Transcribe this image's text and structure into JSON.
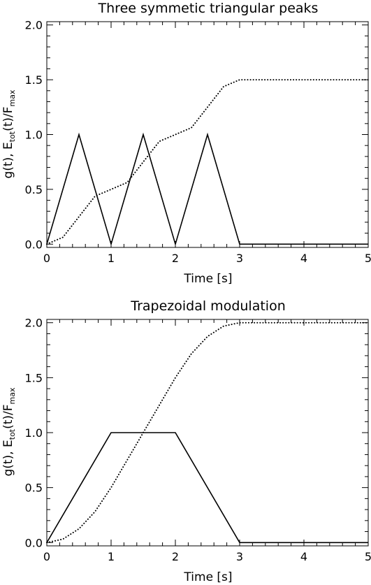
{
  "chart_data": [
    {
      "type": "line",
      "title": "Three symmetic triangular peaks",
      "xlabel": "Time [s]",
      "ylabel": {
        "main": "g(t), E",
        "sub1": "tot",
        "mid": "(t)/F",
        "sub2": "max"
      },
      "xlim": [
        0,
        5
      ],
      "ylim": [
        -0.03,
        2.03
      ],
      "xticks": [
        0,
        1,
        2,
        3,
        4,
        5
      ],
      "xtick_labels": [
        "0",
        "1",
        "2",
        "3",
        "4",
        "5"
      ],
      "yticks": [
        0.0,
        0.5,
        1.0,
        1.5,
        2.0
      ],
      "ytick_labels": [
        "0.0",
        "0.5",
        "1.0",
        "1.5",
        "2.0"
      ],
      "grid": false,
      "series": [
        {
          "style": "solid",
          "x": [
            0,
            0.5,
            1,
            1.5,
            2,
            2.5,
            3,
            5
          ],
          "y": [
            0,
            1,
            0,
            1,
            0,
            1,
            0,
            0
          ]
        },
        {
          "style": "dotted",
          "x": [
            0,
            0.25,
            0.5,
            0.75,
            1,
            1.25,
            1.5,
            1.75,
            2,
            2.25,
            2.5,
            2.75,
            3,
            3.5,
            4,
            4.5,
            5
          ],
          "y": [
            0,
            0.0625,
            0.25,
            0.4375,
            0.5,
            0.5625,
            0.75,
            0.9375,
            1.0,
            1.0625,
            1.25,
            1.4375,
            1.5,
            1.5,
            1.5,
            1.5,
            1.5
          ]
        }
      ]
    },
    {
      "type": "line",
      "title": "Trapezoidal modulation",
      "xlabel": "Time [s]",
      "ylabel": {
        "main": "g(t), E",
        "sub1": "tot",
        "mid": "(t)/F",
        "sub2": "max"
      },
      "xlim": [
        0,
        5
      ],
      "ylim": [
        -0.03,
        2.03
      ],
      "xticks": [
        0,
        1,
        2,
        3,
        4,
        5
      ],
      "xtick_labels": [
        "0",
        "1",
        "2",
        "3",
        "4",
        "5"
      ],
      "yticks": [
        0.0,
        0.5,
        1.0,
        1.5,
        2.0
      ],
      "ytick_labels": [
        "0.0",
        "0.5",
        "1.0",
        "1.5",
        "2.0"
      ],
      "grid": false,
      "series": [
        {
          "style": "solid",
          "x": [
            0,
            1,
            2,
            3,
            5
          ],
          "y": [
            0,
            1,
            1,
            0,
            0
          ]
        },
        {
          "style": "dotted",
          "x": [
            0,
            0.25,
            0.5,
            0.75,
            1,
            1.25,
            1.5,
            1.75,
            2,
            2.25,
            2.5,
            2.75,
            3,
            3.5,
            4,
            4.5,
            5
          ],
          "y": [
            0,
            0.03125,
            0.125,
            0.28125,
            0.5,
            0.75,
            1.0,
            1.25,
            1.5,
            1.71875,
            1.875,
            1.96875,
            2.0,
            2.0,
            2.0,
            2.0,
            2.0
          ]
        }
      ]
    }
  ]
}
